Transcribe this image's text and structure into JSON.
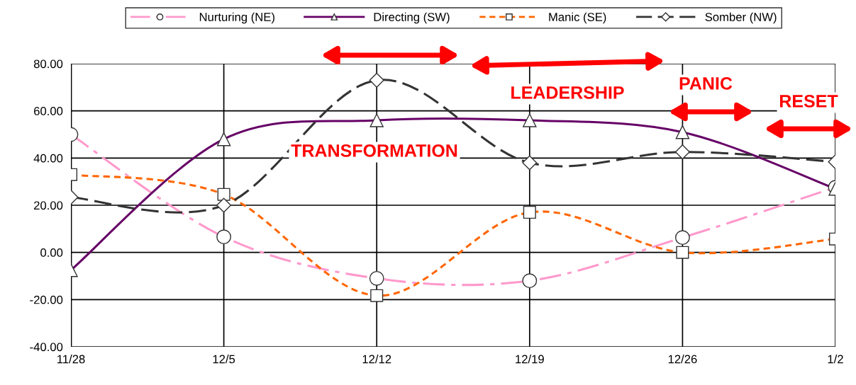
{
  "chart_data": {
    "type": "line",
    "categories": [
      "11/28",
      "12/5",
      "12/12",
      "12/19",
      "12/26",
      "1/2"
    ],
    "series": [
      {
        "name": "Nurturing (NE)",
        "color": "#ff99cc",
        "marker": "circle",
        "line_style": "dashdot",
        "values": [
          50,
          6.6,
          -11,
          -12,
          6.3,
          27.6
        ]
      },
      {
        "name": "Directing (SW)",
        "color": "#660066",
        "marker": "triangle",
        "line_style": "solid",
        "values": [
          -7.5,
          48,
          56,
          56,
          51,
          27
        ]
      },
      {
        "name": "Manic (SE)",
        "color": "#ff6600",
        "marker": "square",
        "line_style": "dotted",
        "values": [
          33,
          24.6,
          -18.3,
          17,
          0,
          5.7
        ]
      },
      {
        "name": "Somber (NW)",
        "color": "#333333",
        "marker": "diamond",
        "line_style": "dashed",
        "values": [
          23.4,
          20,
          73,
          38,
          42.6,
          38.4
        ]
      }
    ],
    "ylim": [
      -40,
      80
    ],
    "yticks": [
      {
        "value": -40,
        "label": "-40.00"
      },
      {
        "value": -20,
        "label": "-20.00"
      },
      {
        "value": 0,
        "label": "0.00"
      },
      {
        "value": 20,
        "label": "20.00"
      },
      {
        "value": 40,
        "label": "40.00"
      },
      {
        "value": 60,
        "label": "60.00"
      },
      {
        "value": 80,
        "label": "80.00"
      }
    ],
    "grid": true,
    "legend": "top",
    "annotations": [
      "TRANSFORMATION",
      "LEADERSHIP",
      "PANIC",
      "RESET"
    ]
  }
}
